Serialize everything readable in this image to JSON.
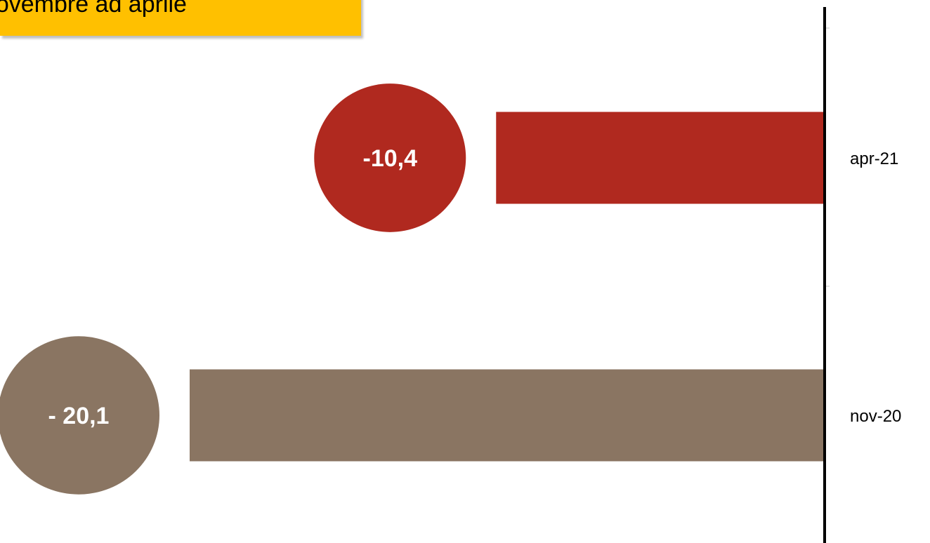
{
  "title": "Da novembre ad aprile",
  "chart_data": {
    "type": "bar",
    "orientation": "horizontal",
    "categories": [
      "apr-21",
      "nov-20"
    ],
    "values": [
      -10.4,
      -20.1
    ],
    "data_labels": [
      "-10,4",
      "- 20,1"
    ],
    "colors": [
      "#b0291f",
      "#8a7562"
    ],
    "xlim": [
      -20.1,
      0
    ],
    "axis_position": "right",
    "grid": false,
    "legend": "none"
  }
}
